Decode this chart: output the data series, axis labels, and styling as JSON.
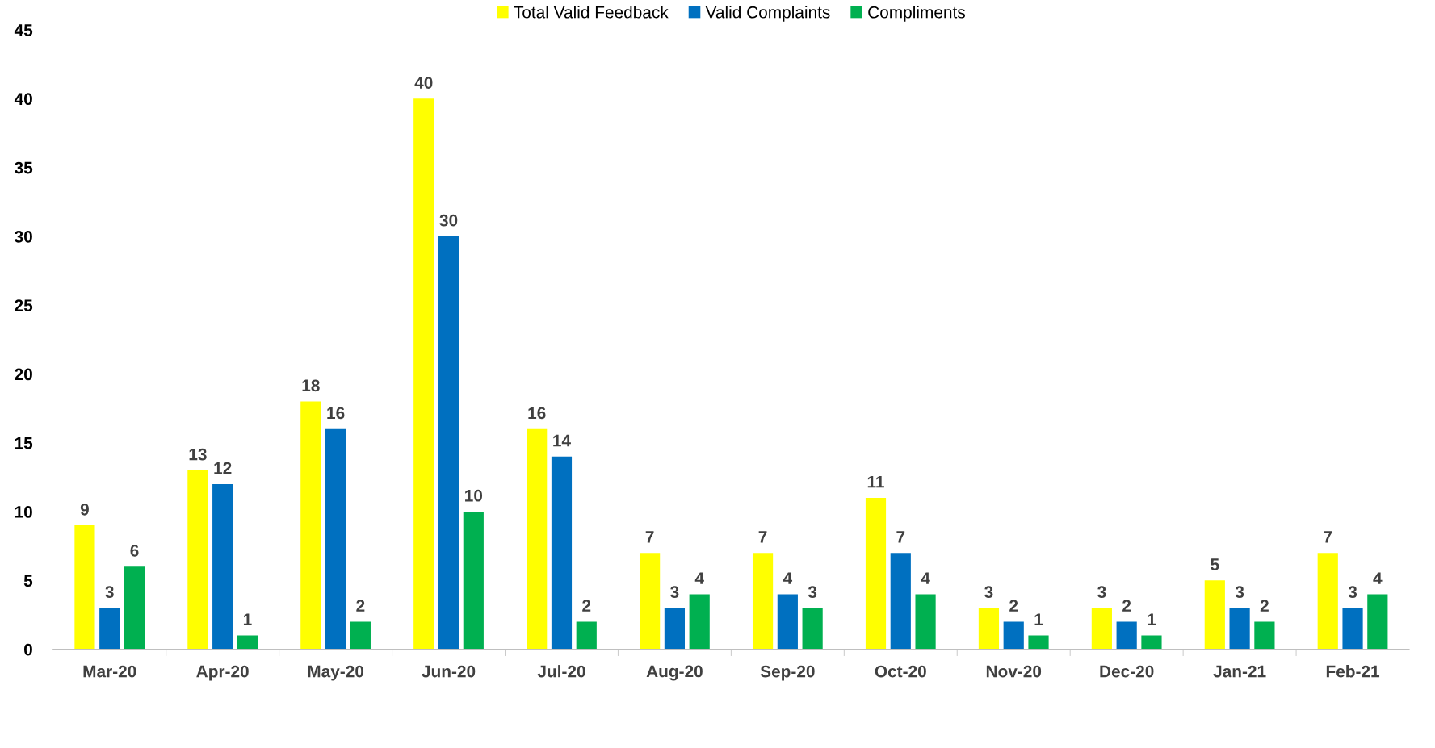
{
  "chart_data": {
    "type": "bar",
    "categories": [
      "Mar-20",
      "Apr-20",
      "May-20",
      "Jun-20",
      "Jul-20",
      "Aug-20",
      "Sep-20",
      "Oct-20",
      "Nov-20",
      "Dec-20",
      "Jan-21",
      "Feb-21"
    ],
    "series": [
      {
        "name": "Total Valid Feedback",
        "color": "#ffff00",
        "values": [
          9,
          13,
          18,
          40,
          16,
          7,
          7,
          11,
          3,
          3,
          5,
          7
        ]
      },
      {
        "name": "Valid Complaints",
        "color": "#0070c0",
        "values": [
          3,
          12,
          16,
          30,
          14,
          3,
          4,
          7,
          2,
          2,
          3,
          3
        ]
      },
      {
        "name": "Compliments",
        "color": "#00b050",
        "values": [
          6,
          1,
          2,
          10,
          2,
          4,
          3,
          4,
          1,
          1,
          2,
          4
        ]
      }
    ],
    "ylim": [
      0,
      45
    ],
    "yticks": [
      0,
      5,
      10,
      15,
      20,
      25,
      30,
      35,
      40,
      45
    ],
    "grid": false,
    "legend": "top",
    "data_labels": true
  }
}
